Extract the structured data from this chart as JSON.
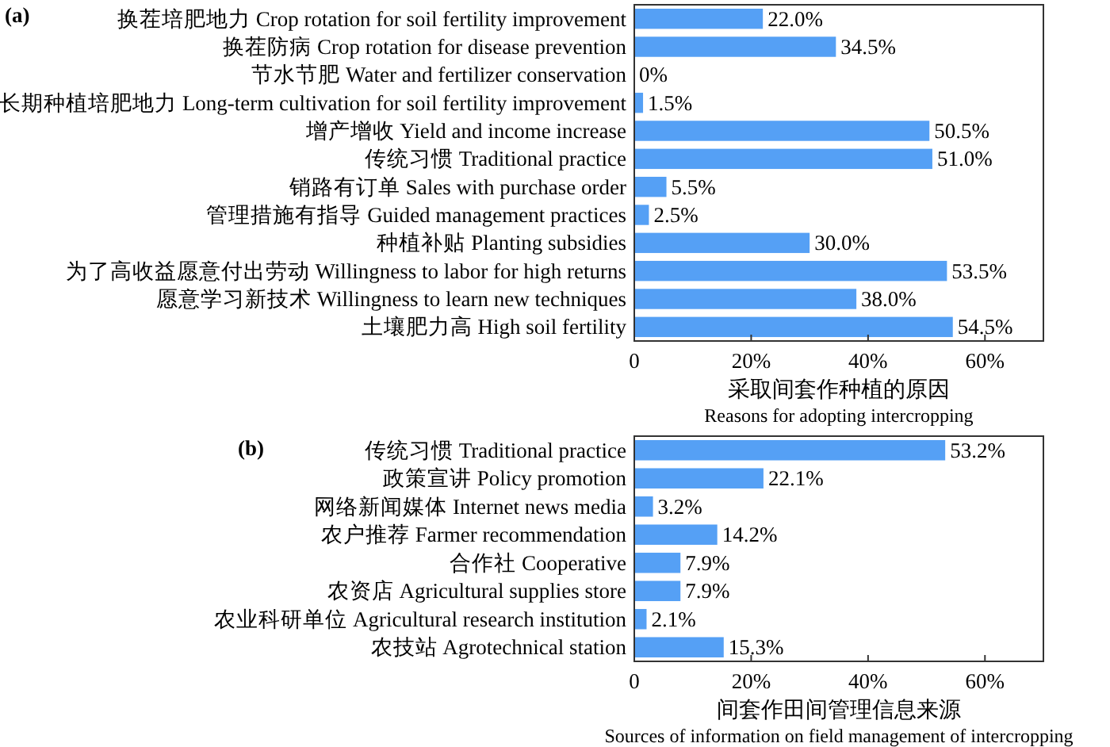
{
  "chart_data": [
    {
      "type": "bar",
      "orientation": "horizontal",
      "title": "(a)",
      "xlabel": "采取间套作种植的原因",
      "annotations": [
        "Reasons for adopting intercropping"
      ],
      "categories": [
        "换茬培肥地力 Crop rotation for soil fertility improvement",
        "换茬防病 Crop rotation for disease prevention",
        "节水节肥 Water and fertilizer conservation",
        "长期种植培肥地力 Long-term cultivation for soil fertility improvement",
        "增产增收 Yield and income increase",
        "传统习惯 Traditional practice",
        "销路有订单 Sales with purchase order",
        "管理措施有指导 Guided management practices",
        "种植补贴 Planting subsidies",
        "为了高收益愿意付出劳动 Willingness to labor for high returns",
        "愿意学习新技术 Willingness to learn new techniques",
        "土壤肥力高 High soil fertility"
      ],
      "values": [
        22.0,
        34.5,
        0,
        1.5,
        50.5,
        51.0,
        5.5,
        2.5,
        30.0,
        53.5,
        38.0,
        54.5
      ],
      "value_labels": [
        "22.0%",
        "34.5%",
        "0%",
        "1.5%",
        "50.5%",
        "51.0%",
        "5.5%",
        "2.5%",
        "30.0%",
        "53.5%",
        "38.0%",
        "54.5%"
      ],
      "color": "#55a0f5",
      "xlim": [
        0,
        70
      ],
      "xticks": [
        0,
        {
          "value": 20,
          "label": "20%"
        },
        {
          "value": 40,
          "label": "40%"
        },
        {
          "value": 60,
          "label": "60%"
        }
      ]
    },
    {
      "type": "bar",
      "orientation": "horizontal",
      "title": "(b)",
      "xlabel": "间套作田间管理信息来源",
      "annotations": [
        "Sources of information on field management of intercropping"
      ],
      "categories": [
        "传统习惯 Traditional practice",
        "政策宣讲 Policy promotion",
        "网络新闻媒体 Internet news media",
        "农户推荐 Farmer recommendation",
        "合作社 Cooperative",
        "农资店 Agricultural supplies store",
        "农业科研单位 Agricultural research institution",
        "农技站 Agrotechnical station"
      ],
      "values": [
        53.2,
        22.1,
        3.2,
        14.2,
        7.9,
        7.9,
        2.1,
        15.3
      ],
      "value_labels": [
        "53.2%",
        "22.1%",
        "3.2%",
        "14.2%",
        "7.9%",
        "7.9%",
        "2.1%",
        "15.3%"
      ],
      "color": "#55a0f5",
      "xlim": [
        0,
        70
      ],
      "xticks": [
        0,
        {
          "value": 20,
          "label": "20%"
        },
        {
          "value": 40,
          "label": "40%"
        },
        {
          "value": 60,
          "label": "60%"
        }
      ]
    }
  ]
}
